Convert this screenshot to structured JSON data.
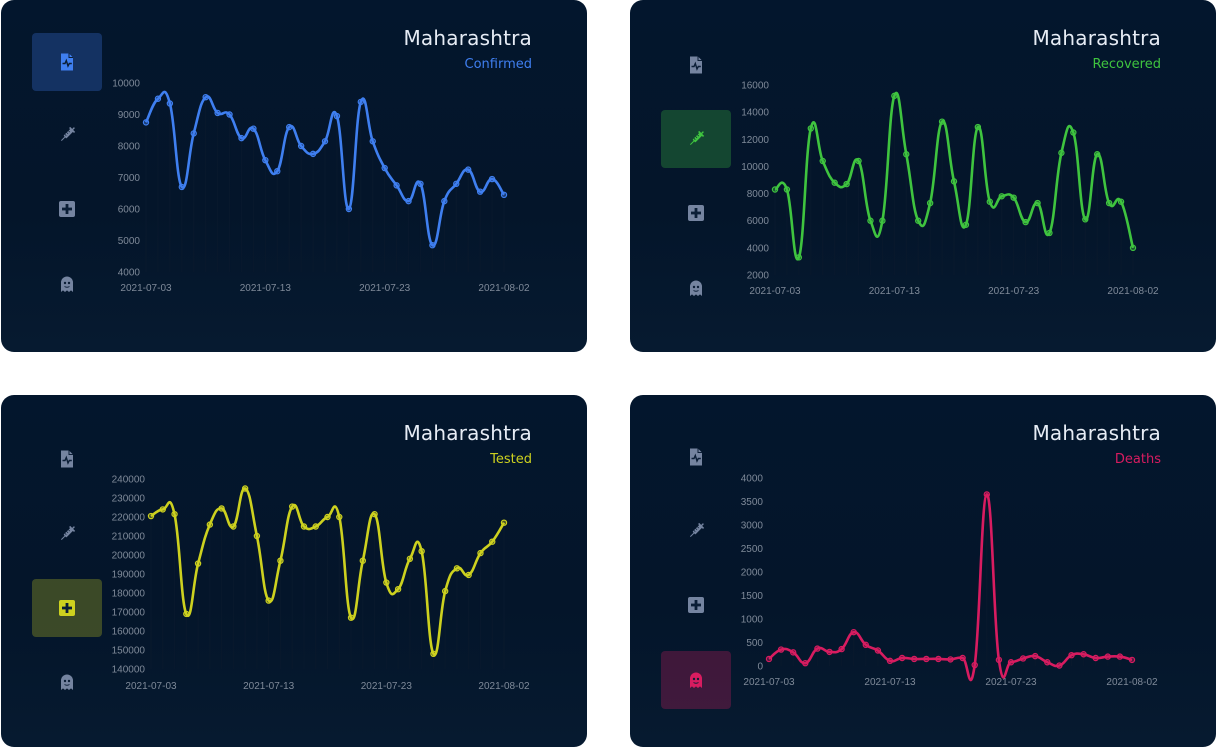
{
  "dates": [
    "2021-07-03",
    "2021-07-04",
    "2021-07-05",
    "2021-07-06",
    "2021-07-07",
    "2021-07-08",
    "2021-07-09",
    "2021-07-10",
    "2021-07-11",
    "2021-07-12",
    "2021-07-13",
    "2021-07-14",
    "2021-07-15",
    "2021-07-16",
    "2021-07-17",
    "2021-07-18",
    "2021-07-19",
    "2021-07-20",
    "2021-07-21",
    "2021-07-22",
    "2021-07-23",
    "2021-07-24",
    "2021-07-25",
    "2021-07-26",
    "2021-07-27",
    "2021-07-28",
    "2021-07-29",
    "2021-07-30",
    "2021-07-31",
    "2021-08-01",
    "2021-08-02"
  ],
  "nav_icons": [
    "file-pulse-icon",
    "syringe-icon",
    "medical-cross-icon",
    "ghost-icon"
  ],
  "cards": [
    {
      "title": "Maharashtra",
      "subtitle": "Confirmed",
      "color": "#3f7ff0",
      "active_icon": 0
    },
    {
      "title": "Maharashtra",
      "subtitle": "Recovered",
      "color": "#3fc43f",
      "active_icon": 1
    },
    {
      "title": "Maharashtra",
      "subtitle": "Tested",
      "color": "#cdd11f",
      "active_icon": 2
    },
    {
      "title": "Maharashtra",
      "subtitle": "Deaths",
      "color": "#d81c60",
      "active_icon": 3
    }
  ],
  "chart_data": [
    {
      "type": "line",
      "title": "Maharashtra",
      "subtitle": "Confirmed",
      "x_ticks": [
        "2021-07-03",
        "2021-07-13",
        "2021-07-23",
        "2021-08-02"
      ],
      "y_ticks": [
        4000,
        5000,
        6000,
        7000,
        8000,
        9000,
        10000
      ],
      "ylim": [
        4000,
        10000
      ],
      "series": [
        {
          "values": [
            8750,
            9500,
            9350,
            6700,
            8400,
            9550,
            9050,
            9000,
            8250,
            8550,
            7550,
            7200,
            8600,
            8000,
            7750,
            8150,
            8950,
            6000,
            9400,
            8150,
            7300,
            6750,
            6250,
            6800,
            4850,
            6250,
            6800,
            7250,
            6550,
            6950,
            6450
          ]
        }
      ]
    },
    {
      "type": "line",
      "title": "Maharashtra",
      "subtitle": "Recovered",
      "x_ticks": [
        "2021-07-03",
        "2021-07-13",
        "2021-07-23",
        "2021-08-02"
      ],
      "y_ticks": [
        2000,
        4000,
        6000,
        8000,
        10000,
        12000,
        14000,
        16000
      ],
      "ylim": [
        2000,
        16000
      ],
      "series": [
        {
          "values": [
            8300,
            8300,
            3300,
            12800,
            10400,
            8800,
            8700,
            10400,
            6000,
            6000,
            15200,
            10900,
            6000,
            7300,
            13300,
            8900,
            5700,
            12900,
            7400,
            7800,
            7700,
            5900,
            7300,
            5100,
            11000,
            12500,
            6100,
            10900,
            7300,
            7400,
            4000
          ]
        }
      ]
    },
    {
      "type": "line",
      "title": "Maharashtra",
      "subtitle": "Tested",
      "x_ticks": [
        "2021-07-03",
        "2021-07-13",
        "2021-07-23",
        "2021-08-02"
      ],
      "y_ticks": [
        140000,
        150000,
        160000,
        170000,
        180000,
        190000,
        200000,
        210000,
        220000,
        230000,
        240000
      ],
      "ylim": [
        140000,
        240000
      ],
      "series": [
        {
          "values": [
            220500,
            224000,
            221500,
            169000,
            195500,
            216000,
            224500,
            215000,
            235000,
            210000,
            176000,
            197000,
            225500,
            215000,
            215000,
            220000,
            220000,
            167000,
            197000,
            221500,
            185500,
            182000,
            198000,
            202000,
            148000,
            181000,
            193000,
            189500,
            201000,
            207000,
            217000
          ]
        }
      ]
    },
    {
      "type": "line",
      "title": "Maharashtra",
      "subtitle": "Deaths",
      "x_ticks": [
        "2021-07-03",
        "2021-07-13",
        "2021-07-23",
        "2021-08-02"
      ],
      "y_ticks": [
        0,
        500,
        1000,
        1500,
        2000,
        2500,
        3000,
        3500,
        4000
      ],
      "ylim": [
        0,
        4000
      ],
      "series": [
        {
          "values": [
            150,
            350,
            290,
            60,
            370,
            300,
            360,
            720,
            450,
            330,
            110,
            170,
            150,
            150,
            150,
            140,
            170,
            20,
            3650,
            130,
            80,
            160,
            210,
            80,
            10,
            230,
            250,
            170,
            200,
            200,
            130
          ]
        }
      ]
    }
  ]
}
